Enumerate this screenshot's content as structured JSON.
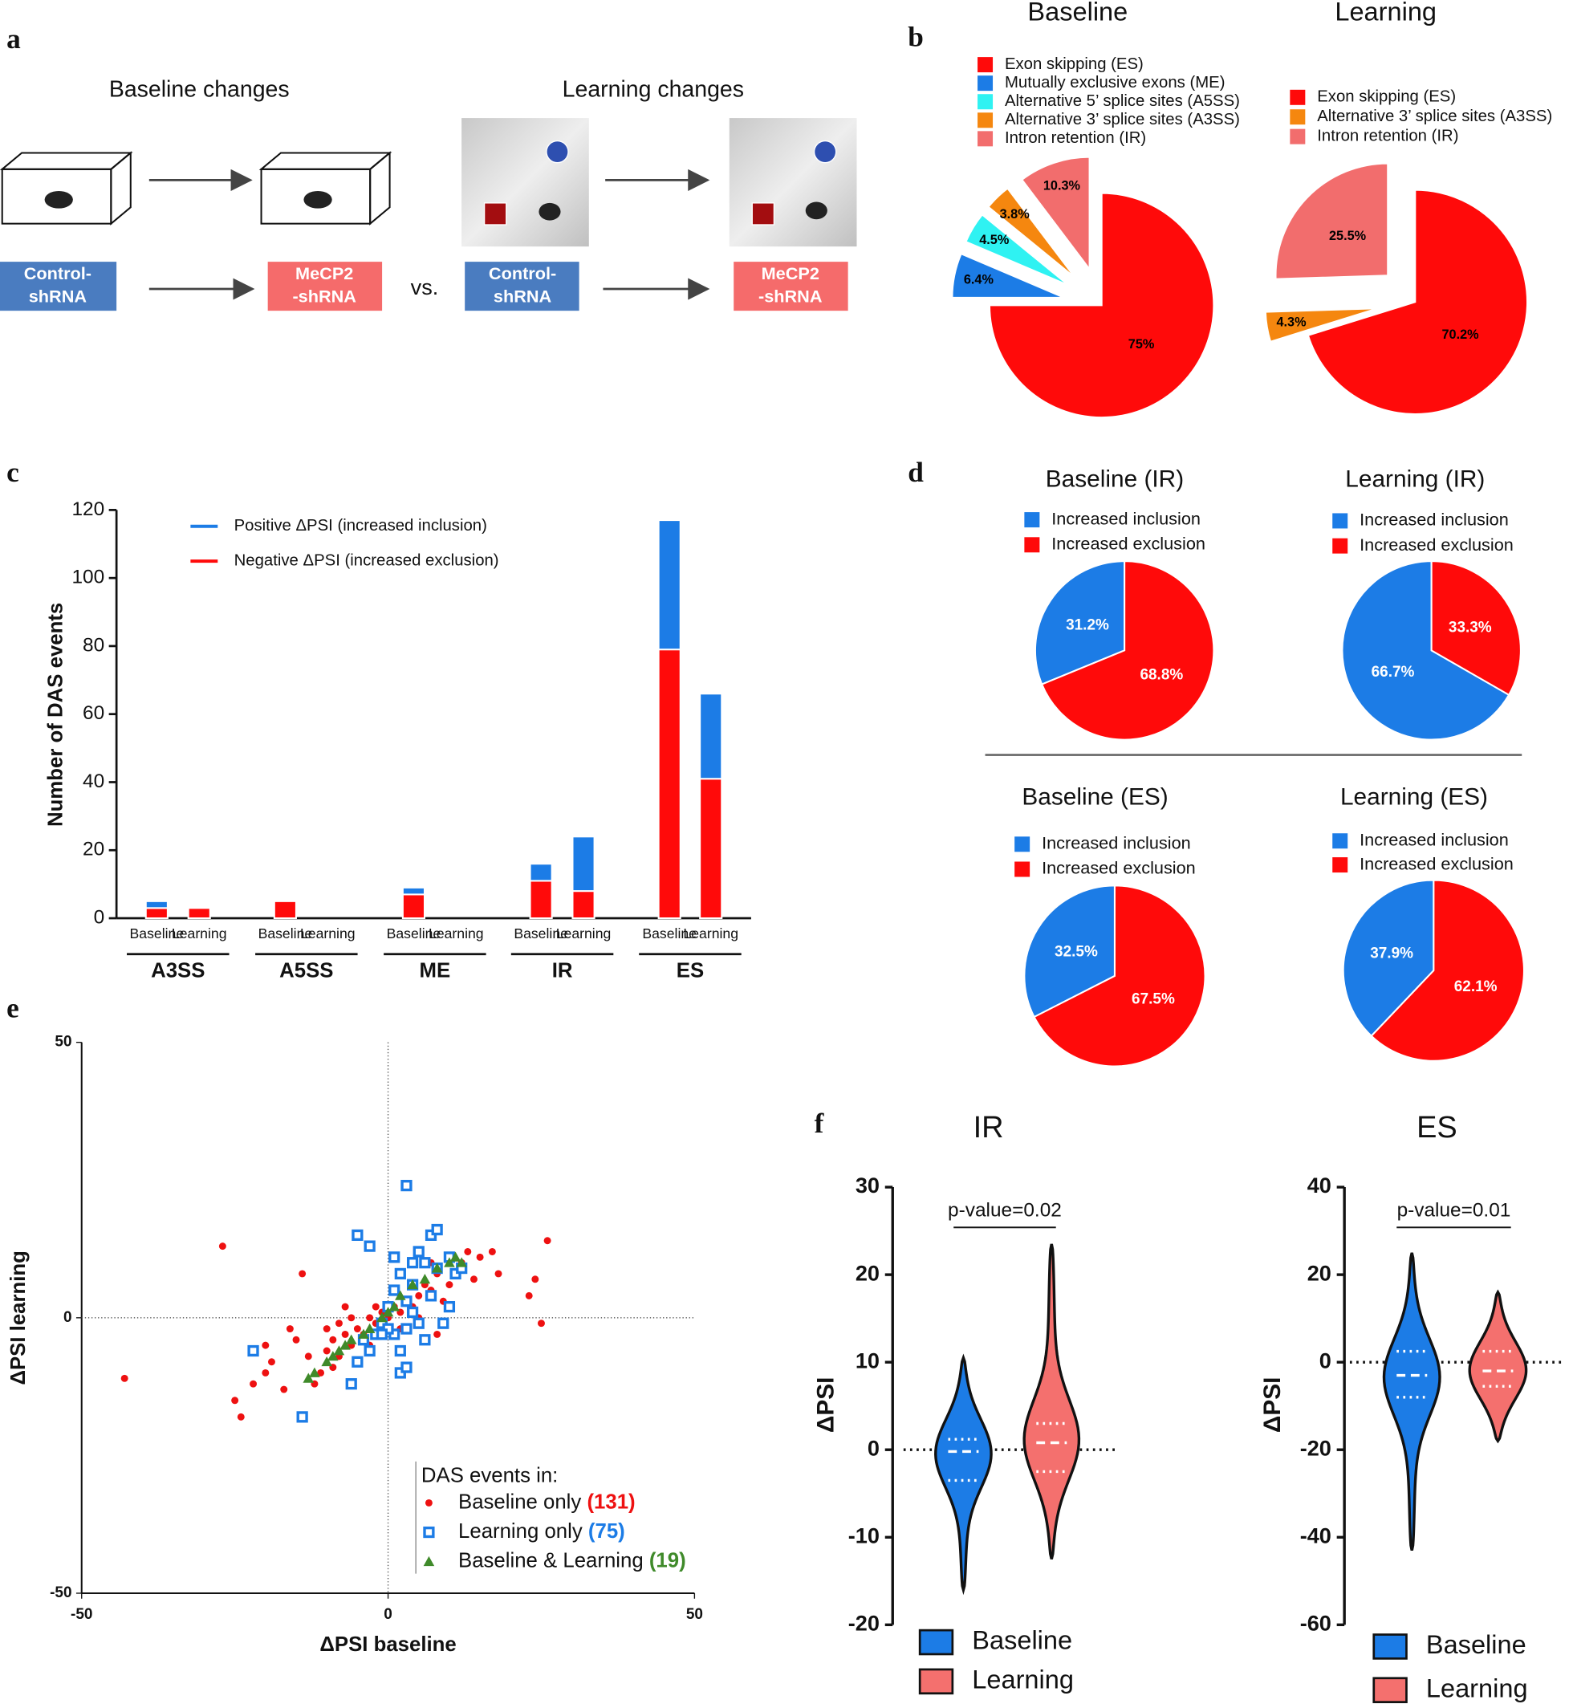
{
  "panel_labels": [
    "a",
    "b",
    "c",
    "d",
    "e",
    "f"
  ],
  "panel_a": {
    "baseline_title": "Baseline changes",
    "learning_title": "Learning changes",
    "control_lines": [
      "Control-",
      "shRNA"
    ],
    "mecp2_lines": [
      "MeCP2",
      "-shRNA"
    ],
    "vs": "vs."
  },
  "chart_data": [
    {
      "type": "pie",
      "title": "Baseline",
      "direction": "clockwise",
      "explode": true,
      "label_color": "#000000",
      "categories": [
        "Exon skipping (ES)",
        "Mutually exclusive exons (ME)",
        "Alternative 5’ splice sites (A5SS)",
        "Alternative 3’ splice sites (A3SS)",
        "Intron retention (IR)"
      ],
      "values": [
        75,
        6.4,
        4.5,
        3.8,
        10.3
      ],
      "value_labels": [
        "75%",
        "6.4%",
        "4.5%",
        "3.8%",
        "10.3%"
      ],
      "colors": [
        "#ff0a0a",
        "#1c7ce6",
        "#2ff2f2",
        "#f5870f",
        "#f26d6d"
      ]
    },
    {
      "type": "pie",
      "title": "Learning",
      "direction": "clockwise",
      "explode": true,
      "label_color": "#000000",
      "categories": [
        "Exon skipping (ES)",
        "Alternative 3’ splice sites (A3SS)",
        "Intron retention (IR)"
      ],
      "values": [
        70.2,
        4.3,
        25.5
      ],
      "value_labels": [
        "70.2%",
        "4.3%",
        "25.5%"
      ],
      "colors": [
        "#ff0a0a",
        "#f5870f",
        "#f26d6d"
      ]
    },
    {
      "type": "bar",
      "stacked": true,
      "ylabel": "Number of DAS events",
      "categories": [
        "Baseline",
        "Learning",
        "Baseline",
        "Learning",
        "Baseline",
        "Learning",
        "Baseline",
        "Learning",
        "Baseline",
        "Learning"
      ],
      "groups": [
        "A3SS",
        "A5SS",
        "ME",
        "IR",
        "ES"
      ],
      "series": [
        {
          "name": "Positive ΔPSI (increased inclusion)",
          "color": "#1c7ce6",
          "values": [
            2,
            0,
            0,
            0,
            2,
            0,
            5,
            16,
            38,
            25
          ]
        },
        {
          "name": "Negative ΔPSI (increased exclusion)",
          "color": "#ff0a0a",
          "values": [
            3,
            3,
            5,
            0,
            7,
            0,
            11,
            8,
            79,
            41
          ]
        }
      ],
      "ylim": [
        0,
        120
      ],
      "yticks": [
        0,
        20,
        40,
        60,
        80,
        100,
        120
      ]
    },
    {
      "type": "pie",
      "title": "Baseline (IR)",
      "direction": "counterclockwise",
      "explode": false,
      "label_color": "#ffffff",
      "categories": [
        "Increased inclusion",
        "Increased exclusion"
      ],
      "values": [
        31.2,
        68.8
      ],
      "value_labels": [
        "31.2%",
        "68.8%"
      ],
      "colors": [
        "#1c7ce6",
        "#ff0a0a"
      ]
    },
    {
      "type": "pie",
      "title": "Learning (IR)",
      "direction": "counterclockwise",
      "explode": false,
      "label_color": "#ffffff",
      "categories": [
        "Increased inclusion",
        "Increased exclusion"
      ],
      "values": [
        66.7,
        33.3
      ],
      "value_labels": [
        "66.7%",
        "33.3%"
      ],
      "colors": [
        "#1c7ce6",
        "#ff0a0a"
      ]
    },
    {
      "type": "pie",
      "title": "Baseline (ES)",
      "direction": "counterclockwise",
      "explode": false,
      "label_color": "#ffffff",
      "categories": [
        "Increased inclusion",
        "Increased exclusion"
      ],
      "values": [
        32.5,
        67.5
      ],
      "value_labels": [
        "32.5%",
        "67.5%"
      ],
      "colors": [
        "#1c7ce6",
        "#ff0a0a"
      ]
    },
    {
      "type": "pie",
      "title": "Learning (ES)",
      "direction": "counterclockwise",
      "explode": false,
      "label_color": "#ffffff",
      "categories": [
        "Increased inclusion",
        "Increased exclusion"
      ],
      "values": [
        37.9,
        62.1
      ],
      "value_labels": [
        "37.9%",
        "62.1%"
      ],
      "colors": [
        "#1c7ce6",
        "#ff0a0a"
      ]
    },
    {
      "type": "scatter",
      "xlabel": "ΔPSI baseline",
      "ylabel": "ΔPSI learning",
      "legend_title": "DAS events in:",
      "xlim": [
        -50,
        50
      ],
      "ylim": [
        -50,
        50
      ],
      "xticks": [
        -50,
        0,
        50
      ],
      "yticks": [
        -50,
        0,
        50
      ],
      "reference_lines": true,
      "series": [
        {
          "name": "Baseline only",
          "count": {
            "value": 131,
            "label": "(131)"
          },
          "color": "#ee1111",
          "marker": "circle",
          "x": [
            -43,
            -27,
            -25,
            -24,
            -20,
            -19,
            -16,
            -15,
            -13,
            -12,
            -14,
            -11,
            -10,
            -10,
            -9,
            -8,
            -8,
            -7,
            -6,
            -6,
            -5,
            -4,
            -3,
            -2,
            -1,
            0,
            1,
            2,
            3,
            4,
            5,
            6,
            7,
            8,
            9,
            10,
            11,
            12,
            14,
            15,
            17,
            18,
            23,
            24,
            25,
            26,
            13,
            -20,
            -17,
            -22,
            -9,
            -5,
            -3,
            2,
            5,
            8,
            9,
            -7,
            -2,
            4,
            7,
            10
          ],
          "y": [
            -11,
            13,
            -15,
            -18,
            -5,
            -8,
            -2,
            -4,
            -7,
            -12,
            8,
            -10,
            -6,
            -2,
            -4,
            -1,
            -7,
            -3,
            -5,
            0,
            -2,
            -3,
            0,
            -1,
            1,
            0,
            2,
            1,
            3,
            2,
            4,
            6,
            5,
            8,
            3,
            6,
            8,
            10,
            7,
            11,
            12,
            8,
            4,
            7,
            -1,
            14,
            12,
            -10,
            -13,
            -12,
            -9,
            -8,
            -5,
            -2,
            0,
            -3,
            -1,
            2,
            2,
            6,
            10,
            11
          ]
        },
        {
          "name": "Learning only",
          "count": {
            "value": 75,
            "label": "(75)"
          },
          "color": "#1c7ce6",
          "marker": "square",
          "x": [
            -22,
            -14,
            -6,
            -5,
            -4,
            -3,
            -2,
            -1,
            0,
            1,
            1,
            2,
            2,
            3,
            3,
            3,
            4,
            4,
            5,
            5,
            6,
            7,
            7,
            8,
            8,
            9,
            10,
            11,
            6,
            -5,
            -3,
            3,
            0,
            2,
            -1,
            4,
            10,
            1,
            12
          ],
          "y": [
            -6,
            -18,
            -12,
            -8,
            -4,
            -6,
            -3,
            -1,
            2,
            5,
            -3,
            8,
            -10,
            -9,
            24,
            3,
            10,
            6,
            12,
            -1,
            10,
            15,
            4,
            16,
            9,
            -1,
            11,
            8,
            -4,
            15,
            13,
            -2,
            -2,
            -6,
            -3,
            1,
            2,
            11,
            9
          ]
        },
        {
          "name": "Baseline & Learning",
          "count": {
            "value": 19,
            "label": "(19)"
          },
          "color": "#3f8a2a",
          "marker": "triangle",
          "x": [
            -13,
            -12,
            -10,
            -9,
            -8,
            -7,
            -6,
            -4,
            -3,
            -1,
            0,
            1,
            2,
            4,
            6,
            8,
            10,
            11,
            12
          ],
          "y": [
            -11,
            -10,
            -8,
            -7,
            -6,
            -5,
            -4,
            -3,
            -2,
            0,
            1,
            2,
            4,
            6,
            7,
            9,
            10,
            11,
            10
          ]
        }
      ]
    },
    {
      "type": "violin",
      "title": "IR",
      "ylabel": "ΔPSI",
      "annotation": "p-value=0.02",
      "reference_line": 0,
      "ylim": [
        -20,
        30
      ],
      "yticks": [
        -20,
        -10,
        0,
        10,
        20,
        30
      ],
      "series": [
        {
          "name": "Baseline",
          "color": "#1c7ce6",
          "min": -16,
          "q1": -3.5,
          "median": -0.2,
          "q3": 1.2,
          "max": 10.5
        },
        {
          "name": "Learning",
          "color": "#f4706e",
          "min": -12.5,
          "q1": -2.5,
          "median": 0.8,
          "q3": 3,
          "max": 23.5
        }
      ]
    },
    {
      "type": "violin",
      "title": "ES",
      "ylabel": "ΔPSI",
      "annotation": "p-value=0.01",
      "reference_line": 0,
      "ylim": [
        -60,
        40
      ],
      "yticks": [
        -60,
        -40,
        -20,
        0,
        20,
        40
      ],
      "series": [
        {
          "name": "Baseline",
          "color": "#1c7ce6",
          "min": -43,
          "q1": -8,
          "median": -3,
          "q3": 2.5,
          "max": 25
        },
        {
          "name": "Learning",
          "color": "#f4706e",
          "min": -18,
          "q1": -5.5,
          "median": -2,
          "q3": 2.5,
          "max": 16
        }
      ]
    }
  ]
}
